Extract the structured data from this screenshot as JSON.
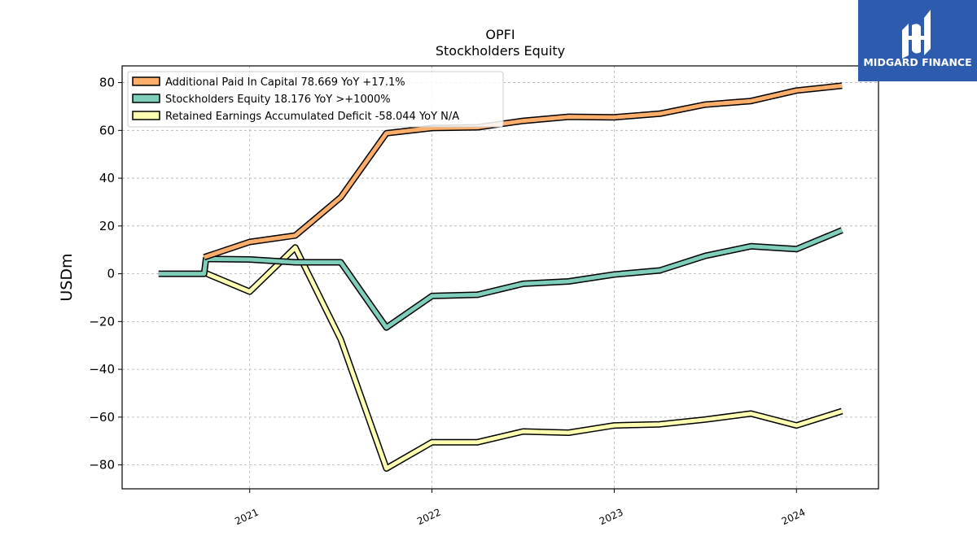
{
  "chart_data": {
    "type": "line",
    "title": "OPFI",
    "subtitle": "Stockholders  Equity",
    "ylabel": "USDm",
    "xlabel": "",
    "ylim": [
      -90,
      87
    ],
    "xlim": [
      2020.3,
      2024.45
    ],
    "yticks": [
      80,
      60,
      40,
      20,
      0,
      -20,
      -40,
      -60,
      -80
    ],
    "ytick_labels": [
      "80",
      "60",
      "40",
      "20",
      "0",
      "−20",
      "−40",
      "−60",
      "−80"
    ],
    "xticks": [
      2021,
      2022,
      2023,
      2024
    ],
    "xtick_labels": [
      "2021",
      "2022",
      "2023",
      "2024"
    ],
    "grid": true,
    "legend_position": "top-left",
    "series": [
      {
        "name": "Additional Paid In Capital",
        "legend_label": "Additional Paid In Capital  78.669 YoY +17.1%",
        "color": "#fdae6b",
        "x": [
          2020.75,
          2021.0,
          2021.25,
          2021.5,
          2021.75,
          2022.0,
          2022.25,
          2022.5,
          2022.75,
          2023.0,
          2023.25,
          2023.5,
          2023.75,
          2024.0,
          2024.25
        ],
        "y": [
          6.9,
          13.3,
          16.0,
          32.0,
          58.8,
          61.0,
          61.3,
          64.0,
          65.7,
          65.5,
          67.0,
          70.8,
          72.3,
          76.7,
          78.7
        ]
      },
      {
        "name": "Stockholders Equity",
        "legend_label": "Stockholders Equity  18.176 YoY >+1000%",
        "color": "#7fcdbb",
        "x": [
          2020.5,
          2020.75,
          2020.76,
          2021.0,
          2021.25,
          2021.5,
          2021.75,
          2022.0,
          2022.25,
          2022.5,
          2022.75,
          2023.0,
          2023.25,
          2023.5,
          2023.75,
          2024.0,
          2024.25
        ],
        "y": [
          0,
          0,
          6.2,
          6.0,
          4.8,
          4.8,
          -22.5,
          -9.3,
          -8.8,
          -4.2,
          -3.2,
          -0.3,
          1.4,
          7.5,
          11.5,
          10.3,
          18.2
        ]
      },
      {
        "name": "Retained Earnings Accumulated Deficit",
        "legend_label": "Retained Earnings Accumulated Deficit  -58.044 YoY N/A",
        "color": "#ffffb2",
        "x": [
          2020.75,
          2021.0,
          2021.25,
          2021.5,
          2021.75,
          2022.0,
          2022.25,
          2022.5,
          2022.75,
          2023.0,
          2023.25,
          2023.5,
          2023.75,
          2024.0,
          2024.25
        ],
        "y": [
          0.5,
          -7.5,
          11.0,
          -27.5,
          -81.5,
          -70.5,
          -70.5,
          -66.0,
          -66.5,
          -63.5,
          -63.0,
          -61.0,
          -58.5,
          -63.5,
          -57.5
        ]
      }
    ]
  },
  "brand": {
    "name": "MIDGARD FINANCE",
    "logo_icon": "midgard-logo-icon",
    "background": "#2d5bad"
  }
}
